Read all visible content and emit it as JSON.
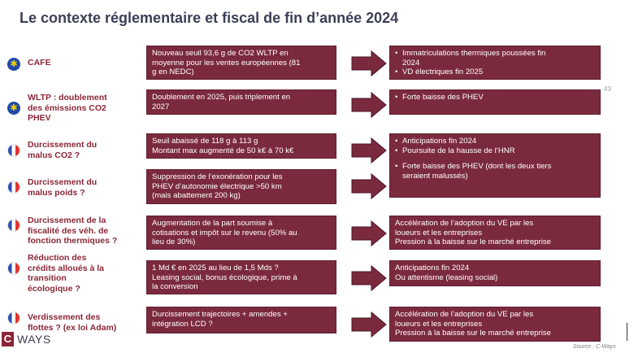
{
  "title": "Le contexte réglementaire et fiscal de fin d’année 2024",
  "page_number": "43",
  "rows": [
    {
      "flag": "eu-flag-icon",
      "label": [
        "CAFE"
      ],
      "measure": [
        "Nouveau seuil   93,6 g de CO2 WLTP en",
        "moyenne pour les ventes européennes (81",
        "g en NEDC)"
      ]
    },
    {
      "flag": "eu-flag-icon",
      "label": [
        "WLTP : doublement",
        "des émissions CO2",
        "PHEV"
      ],
      "measure": [
        "Doublement en 2025, puis triplement en",
        "2027"
      ]
    },
    {
      "flag": "france-flag-icon",
      "label": [
        "Durcissement du",
        "malus CO2 ?"
      ],
      "measure": [
        "Seuil abaissé de 118 g à 113 g",
        "Montant max augmenté de 50 k€ à 70 k€"
      ]
    },
    {
      "flag": "france-flag-icon",
      "label": [
        "Durcissement du",
        "malus poids ?"
      ],
      "measure": [
        "Suppression de l’exonération pour les",
        "PHEV d’autonomie électrique >50 km",
        "(mais abattement 200 kg)"
      ]
    },
    {
      "flag": "france-flag-icon",
      "label": [
        "Durcissement de la",
        "fiscalité des véh. de",
        "fonction thermiques ?"
      ],
      "measure": [
        "Augmentation de la part soumise à",
        "cotisations et impôt sur le revenu (50% au",
        "lieu de 30%)"
      ]
    },
    {
      "flag": "france-flag-icon",
      "label": [
        "Réduction des",
        "crédits alloués à la",
        "transition",
        "écologique ?"
      ],
      "measure": [
        "1 Md € en 2025 au lieu de 1,5 Mds ?",
        "Leasing social, bonus écologique, prime à",
        "la conversion"
      ]
    },
    {
      "flag": "france-flag-icon",
      "label": [
        "Verdissement des",
        "flottes ? (ex loi Adam)"
      ],
      "measure": [
        "Durcissement trajectoires + amendes +",
        "intégration LCD ?"
      ]
    }
  ],
  "consequences": [
    {
      "items": [
        {
          "text": [
            "Immatriculations thermiques poussées fin",
            "2024"
          ],
          "bullet": true
        },
        {
          "text": [
            "VD électriques fin 2025"
          ],
          "bullet": true
        }
      ]
    },
    {
      "items": [
        {
          "text": [
            "Forte baisse des PHEV"
          ],
          "bullet": true
        }
      ]
    },
    {
      "items": [
        {
          "text": [
            "Anticipations fin 2024"
          ],
          "bullet": true
        },
        {
          "text": [
            "Poursuite de la hausse de l’HNR"
          ],
          "bullet": true
        },
        {
          "text": [
            "Forte baisse des PHEV (dont les deux tiers",
            "seraient malussés)"
          ],
          "bullet": true,
          "gap": true
        }
      ]
    },
    {
      "items": [
        {
          "text": [
            "Accélération de l’adoption du VE par les",
            "loueurs et les entreprises"
          ],
          "bullet": false
        },
        {
          "text": [
            "Pression à la baisse sur le marché entreprise"
          ],
          "bullet": false
        }
      ]
    },
    {
      "items": [
        {
          "text": [
            "Anticipations fin 2024"
          ],
          "bullet": false
        },
        {
          "text": [
            "Ou attentisme (leasing social)"
          ],
          "bullet": false
        }
      ]
    },
    {
      "items": [
        {
          "text": [
            "Accélération de l’adoption du VE par les",
            "loueurs et les entreprises"
          ],
          "bullet": false
        },
        {
          "text": [
            "Pression à la baisse sur le marché entreprise"
          ],
          "bullet": false
        }
      ]
    }
  ],
  "logo": {
    "c": "C",
    "ways": "WAYS"
  },
  "source": "Source : C-Ways",
  "colors": {
    "accent": "#7b2a3e",
    "label": "#8a2637",
    "title": "#3b3f57"
  }
}
